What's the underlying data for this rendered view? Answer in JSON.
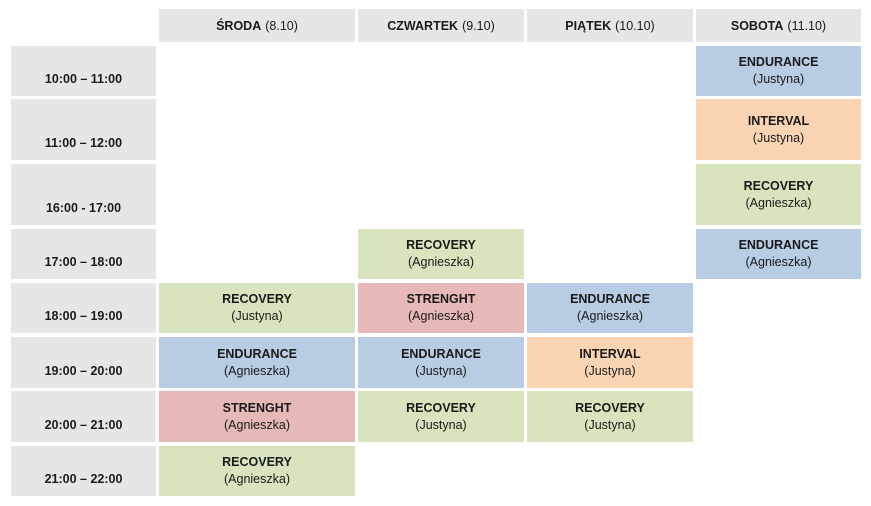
{
  "days": [
    {
      "name": "ŚRODA",
      "date": "(8.10)"
    },
    {
      "name": "CZWARTEK",
      "date": "(9.10)"
    },
    {
      "name": "PIĄTEK",
      "date": "(10.10)"
    },
    {
      "name": "SOBOTA",
      "date": "(11.10)"
    }
  ],
  "times": [
    "10:00 – 11:00",
    "11:00 – 12:00",
    "16:00 - 17:00",
    "17:00 – 18:00",
    "18:00 – 19:00",
    "19:00 – 20:00",
    "20:00 – 21:00",
    "21:00 – 22:00"
  ],
  "classes": {
    "sat_1000": {
      "name": "ENDURANCE",
      "trainer": "(Justyna)"
    },
    "sat_1100": {
      "name": "INTERVAL",
      "trainer": "(Justyna)"
    },
    "sat_1600": {
      "name": "RECOVERY",
      "trainer": "(Agnieszka)"
    },
    "thu_1700": {
      "name": "RECOVERY",
      "trainer": "(Agnieszka)"
    },
    "sat_1700": {
      "name": "ENDURANCE",
      "trainer": "(Agnieszka)"
    },
    "wed_1800": {
      "name": "RECOVERY",
      "trainer": "(Justyna)"
    },
    "thu_1800": {
      "name": "STRENGHT",
      "trainer": "(Agnieszka)"
    },
    "fri_1800": {
      "name": "ENDURANCE",
      "trainer": "(Agnieszka)"
    },
    "wed_1900": {
      "name": "ENDURANCE",
      "trainer": "(Agnieszka)"
    },
    "thu_1900": {
      "name": "ENDURANCE",
      "trainer": "(Justyna)"
    },
    "fri_1900": {
      "name": "INTERVAL",
      "trainer": "(Justyna)"
    },
    "wed_2000": {
      "name": "STRENGHT",
      "trainer": "(Agnieszka)"
    },
    "thu_2000": {
      "name": "RECOVERY",
      "trainer": "(Justyna)"
    },
    "fri_2000": {
      "name": "RECOVERY",
      "trainer": "(Justyna)"
    },
    "wed_2100": {
      "name": "RECOVERY",
      "trainer": "(Agnieszka)"
    }
  },
  "colors": {
    "endurance": "#b8cce4",
    "interval": "#fbd4b4",
    "recovery": "#d7e4bd",
    "strenght": "#e6b9b8",
    "header": "#e6e6e6"
  }
}
